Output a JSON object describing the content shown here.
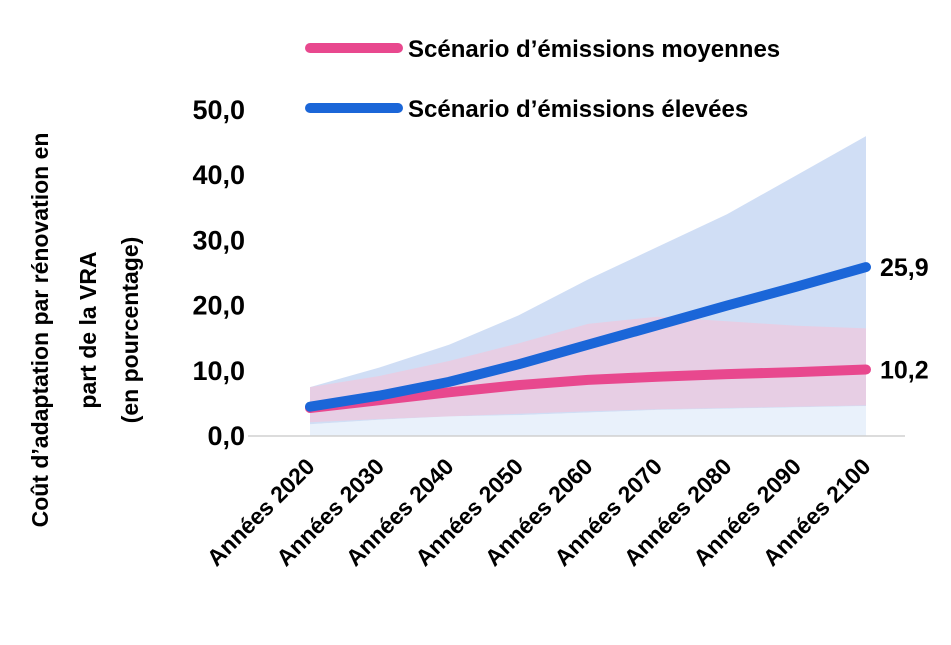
{
  "chart_data": {
    "type": "line",
    "title": "",
    "ylabel_lines": [
      "Coût d’adaptation par rénovation en",
      "part de la VRA",
      "(en pourcentage)"
    ],
    "xlabel": "",
    "categories": [
      "Années 2020",
      "Années 2030",
      "Années 2040",
      "Années 2050",
      "Années 2060",
      "Années 2070",
      "Années 2080",
      "Années 2090",
      "Années 2100"
    ],
    "yticks": [
      "0,0",
      "10,0",
      "20,0",
      "30,0",
      "40,0",
      "50,0"
    ],
    "ylim": [
      0,
      50
    ],
    "grid": false,
    "legend_position": "top",
    "series": [
      {
        "name": "Scénario d’émissions moyennes",
        "color": "#e8488e",
        "band_color": "#f7c3d8",
        "values": [
          4.3,
          5.5,
          6.7,
          7.8,
          8.6,
          9.1,
          9.5,
          9.8,
          10.2
        ],
        "low": [
          2.1,
          2.6,
          3.0,
          3.4,
          3.8,
          4.1,
          4.3,
          4.5,
          4.7
        ],
        "high": [
          7.5,
          9.2,
          11.5,
          14.2,
          17.2,
          18.3,
          17.6,
          16.9,
          16.5
        ],
        "end_label": "10,2"
      },
      {
        "name": "Scénario d’émissions élevées",
        "color": "#1b66d8",
        "band_color": "#cddcf4",
        "values": [
          4.5,
          6.2,
          8.3,
          11.0,
          14.0,
          17.0,
          20.0,
          22.9,
          25.9
        ],
        "low": [
          1.8,
          2.5,
          3.0,
          3.2,
          3.6,
          4.0,
          4.2,
          4.4,
          4.6
        ],
        "high": [
          7.5,
          10.5,
          14.0,
          18.5,
          24.0,
          29.0,
          34.0,
          40.0,
          46.0
        ],
        "end_label": "25,9"
      }
    ]
  }
}
